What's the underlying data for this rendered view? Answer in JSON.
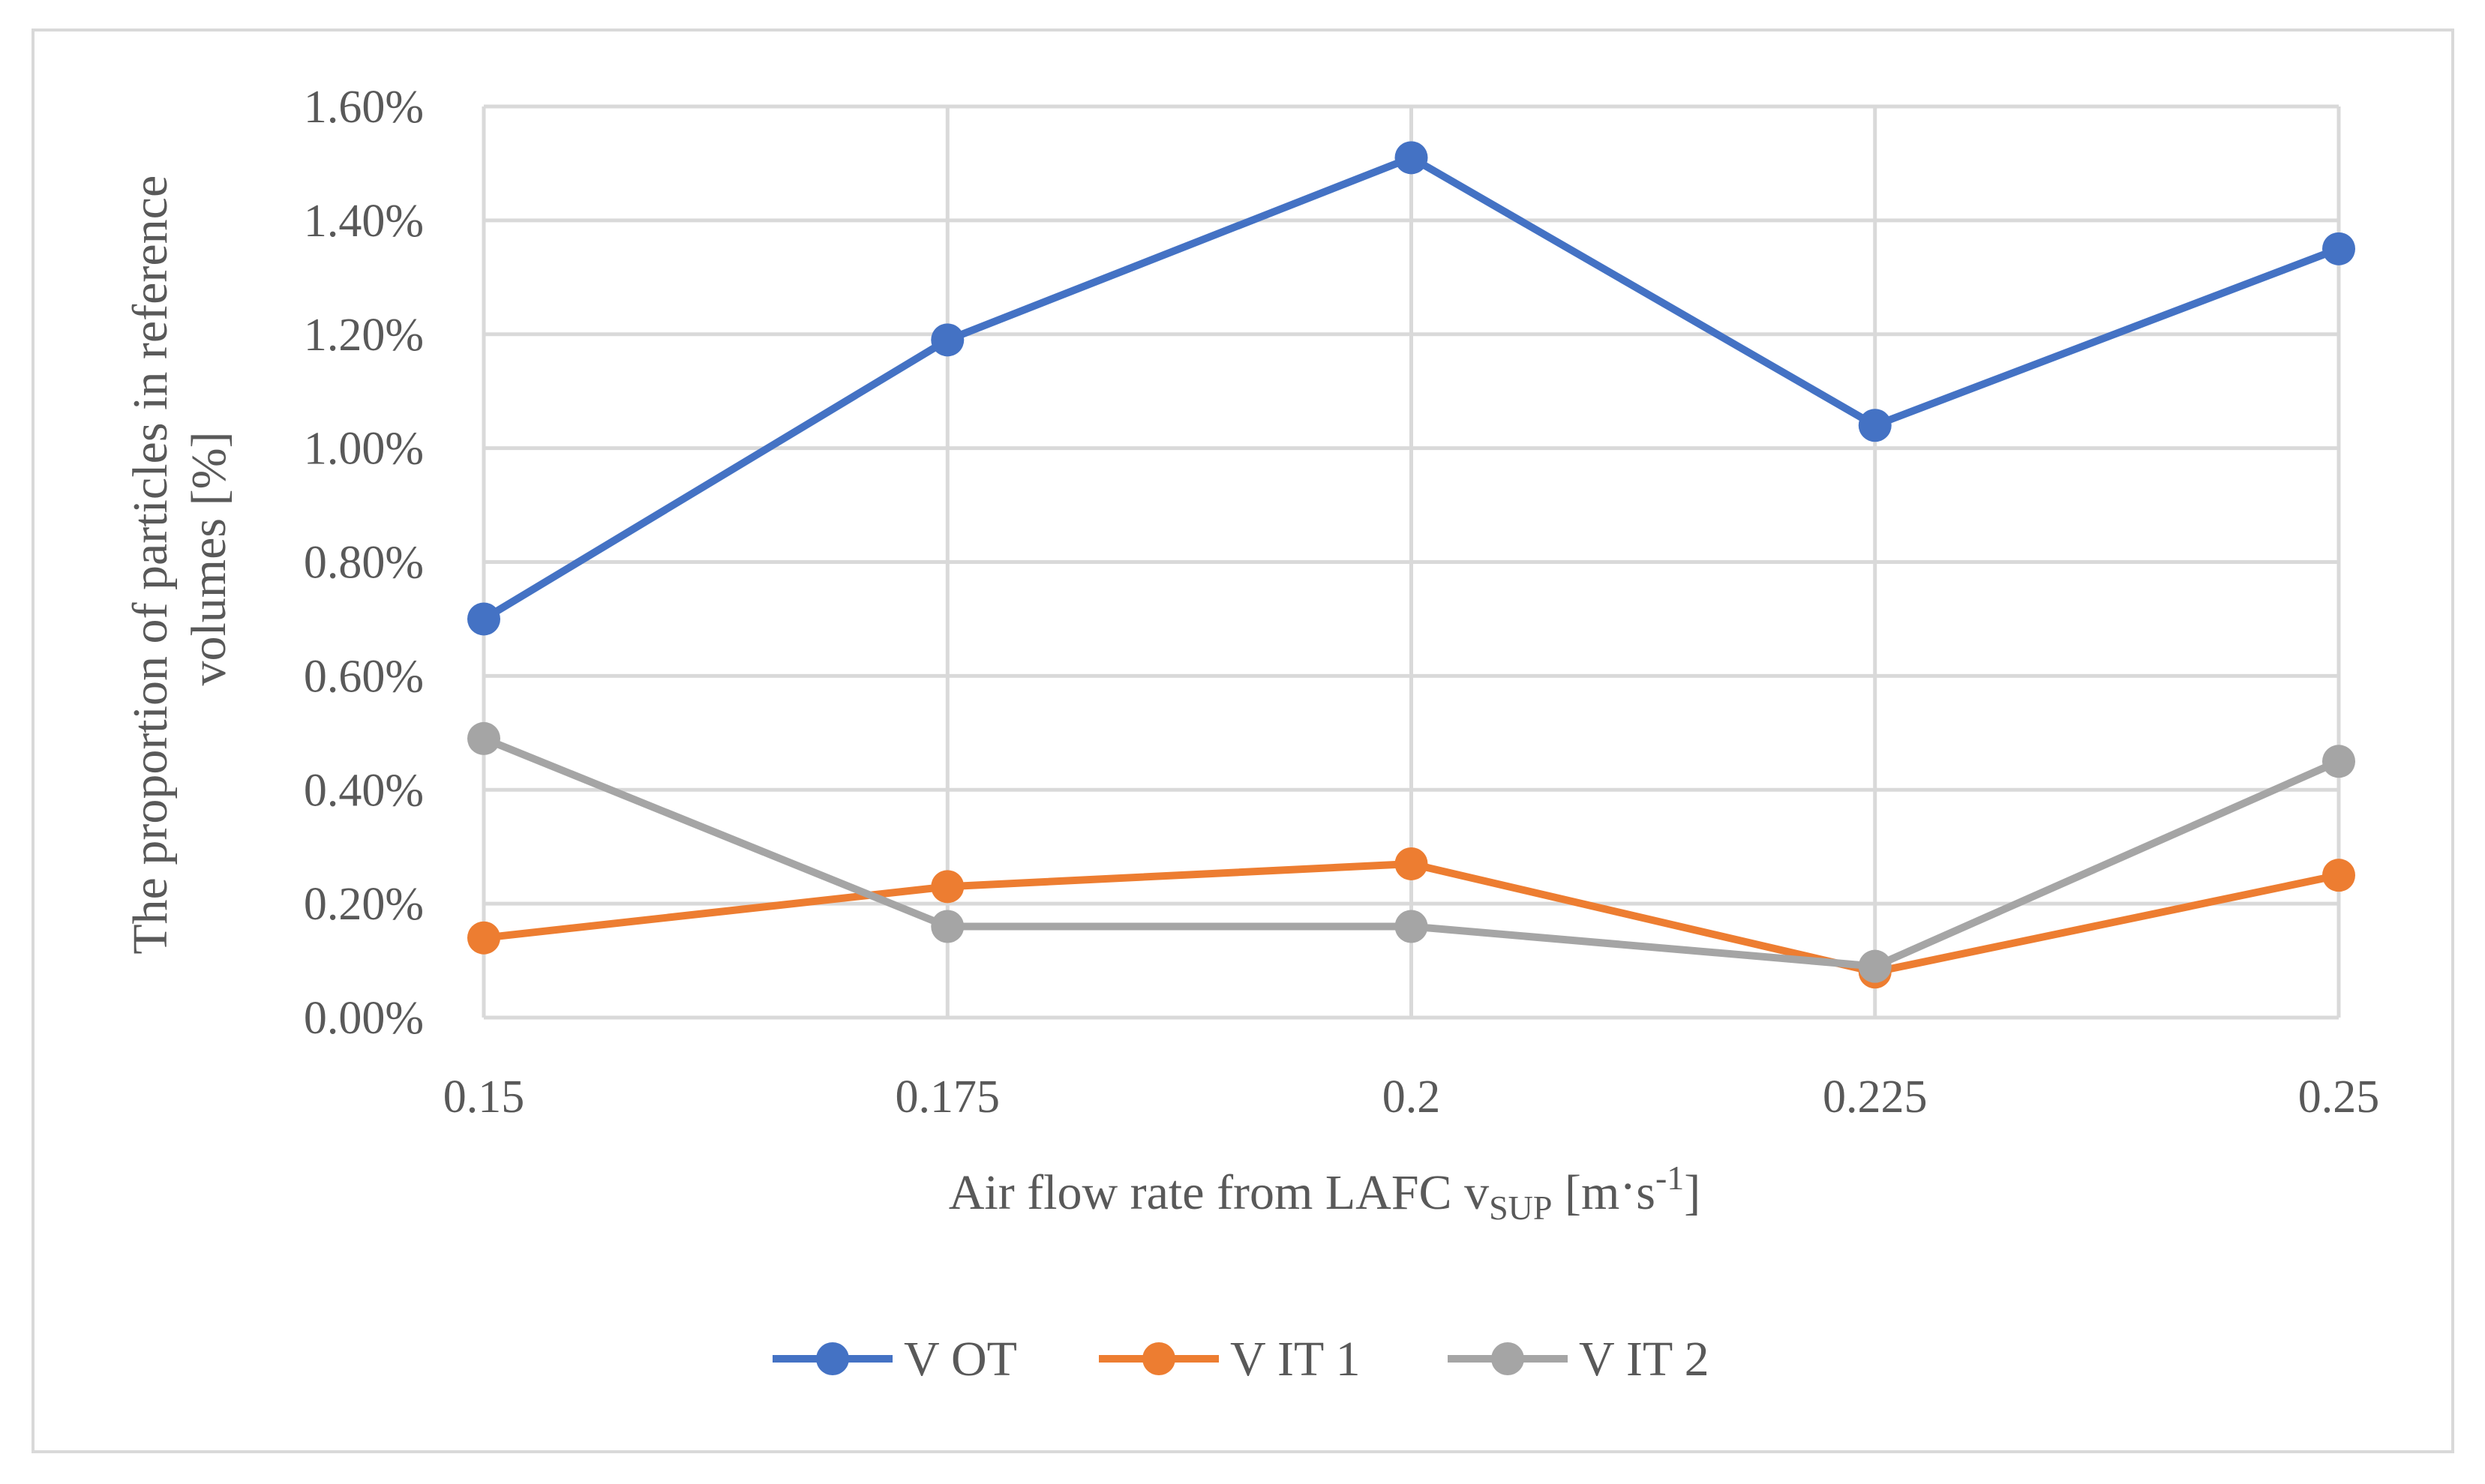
{
  "chart_data": {
    "type": "line",
    "title": "",
    "x": [
      "0.15",
      "0.175",
      "0.2",
      "0.225",
      "0.25"
    ],
    "xlabel": {
      "prefix": "Air flow rate from LAFC v",
      "subscript": "SUP",
      "middle": " [m",
      "dot": "·",
      "middle2": "s",
      "superscript": "-1",
      "suffix": "]"
    },
    "ylabel": [
      "The proportion of particles in reference",
      "volumes [%]"
    ],
    "ylim": [
      0,
      0.016
    ],
    "yticks": [
      0,
      0.002,
      0.004,
      0.006,
      0.008,
      0.01,
      0.012,
      0.014,
      0.016
    ],
    "ytick_labels": [
      "0.00%",
      "0.20%",
      "0.40%",
      "0.60%",
      "0.80%",
      "1.00%",
      "1.20%",
      "1.40%",
      "1.60%"
    ],
    "grid": true,
    "legend_position": "bottom",
    "series": [
      {
        "name": "V OT",
        "color": "#4472c4",
        "values": [
          0.007,
          0.0119,
          0.0151,
          0.0104,
          0.0135
        ]
      },
      {
        "name": "V IT 1",
        "color": "#ed7d31",
        "values": [
          0.0014,
          0.0023,
          0.0027,
          0.0008,
          0.0025
        ]
      },
      {
        "name": "V IT 2",
        "color": "#a5a5a5",
        "values": [
          0.0049,
          0.0016,
          0.0016,
          0.0009,
          0.0045
        ]
      }
    ]
  }
}
